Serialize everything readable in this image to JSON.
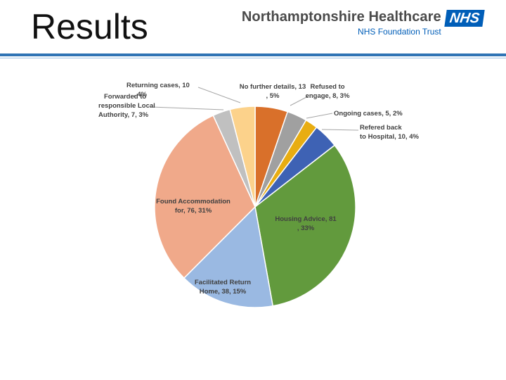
{
  "slide": {
    "title": "Results"
  },
  "header": {
    "org_name": "Northamptonshire Healthcare",
    "org_subtitle": "NHS Foundation Trust",
    "logo_text": "NHS",
    "logo_color": "#005eb8",
    "rule_color": "#2f74b5"
  },
  "chart_data": {
    "type": "pie",
    "title": "",
    "start_angle_deg": 0,
    "direction": "clockwise",
    "slices": [
      {
        "label": "No further details, 13, 5%",
        "value": 13,
        "percent": 5,
        "color": "#d9702a"
      },
      {
        "label": "Refused to engage, 8, 3%",
        "value": 8,
        "percent": 3,
        "color": "#a0a0a0"
      },
      {
        "label": "Ongoing cases, 5, 2%",
        "value": 5,
        "percent": 2,
        "color": "#e8ad12"
      },
      {
        "label": "Refered back to Hospital, 10, 4%",
        "value": 10,
        "percent": 4,
        "color": "#3e62b4"
      },
      {
        "label": "Housing Advice, 81, 33%",
        "value": 81,
        "percent": 33,
        "color": "#629a3d"
      },
      {
        "label": "Facilitated Return Home, 38, 15%",
        "value": 38,
        "percent": 15,
        "color": "#9ab9e2"
      },
      {
        "label": "Found Accommodation for, 76, 31%",
        "value": 76,
        "percent": 31,
        "color": "#f0a98a"
      },
      {
        "label": "Forwarded to responsible Local Authority, 7, 3%",
        "value": 7,
        "percent": 3,
        "color": "#c0c0c0"
      },
      {
        "label": "Returning cases, 10, 4%",
        "value": 10,
        "percent": 4,
        "color": "#fcd28b"
      }
    ],
    "legend": "none",
    "data_labels": "outside-with-leader-lines"
  }
}
